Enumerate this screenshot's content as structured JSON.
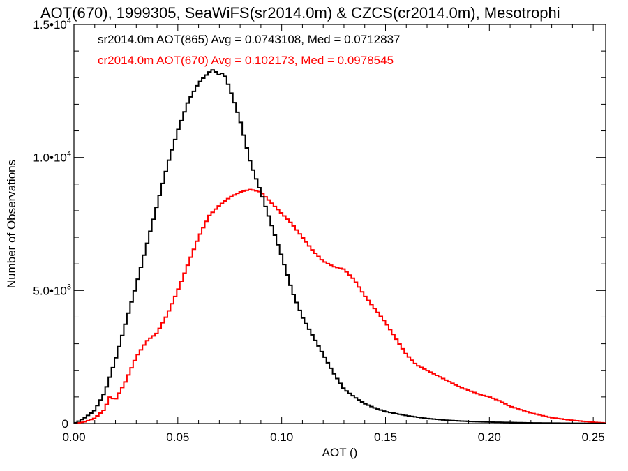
{
  "chart_data": {
    "type": "line",
    "title": "AOT(670), 1999305, SeaWiFS(sr2014.0m) & CZCS(cr2014.0m), Mesotrophi",
    "xlabel": "AOT ()",
    "ylabel": "Number of Observations",
    "xlim": [
      0.0,
      0.256
    ],
    "ylim": [
      0,
      15000
    ],
    "x_ticks": [
      {
        "value": 0.0,
        "label": "0.00"
      },
      {
        "value": 0.05,
        "label": "0.05"
      },
      {
        "value": 0.1,
        "label": "0.10"
      },
      {
        "value": 0.15,
        "label": "0.15"
      },
      {
        "value": 0.2,
        "label": "0.20"
      },
      {
        "value": 0.25,
        "label": "0.25"
      }
    ],
    "y_ticks": [
      {
        "value": 0,
        "mantissa": "0",
        "exponent": ""
      },
      {
        "value": 5000,
        "mantissa": "5.0•10",
        "exponent": "3"
      },
      {
        "value": 10000,
        "mantissa": "1.0•10",
        "exponent": "4"
      },
      {
        "value": 15000,
        "mantissa": "1.5•10",
        "exponent": "4"
      }
    ],
    "grid": false,
    "legend_position": "top-left",
    "series": [
      {
        "name": "sr2014.0m AOT(865) Avg = 0.0743108, Med = 0.0712837",
        "color": "#000000",
        "x": [
          0.0,
          0.005,
          0.01,
          0.015,
          0.02,
          0.025,
          0.03,
          0.035,
          0.04,
          0.045,
          0.05,
          0.055,
          0.06,
          0.065,
          0.067,
          0.07,
          0.072,
          0.075,
          0.08,
          0.085,
          0.09,
          0.095,
          0.1,
          0.105,
          0.11,
          0.115,
          0.12,
          0.125,
          0.13,
          0.135,
          0.14,
          0.145,
          0.15,
          0.16,
          0.17,
          0.18,
          0.19,
          0.2,
          0.22,
          0.24,
          0.256
        ],
        "values": [
          0,
          200,
          500,
          1200,
          2400,
          3800,
          5200,
          6700,
          8200,
          9700,
          11000,
          12100,
          12800,
          13200,
          13300,
          13100,
          13200,
          12600,
          11400,
          9800,
          8700,
          7500,
          6300,
          5000,
          4000,
          3300,
          2600,
          1900,
          1300,
          1000,
          750,
          580,
          450,
          300,
          190,
          120,
          80,
          55,
          25,
          10,
          5
        ]
      },
      {
        "name": "cr2014.0m AOT(670) Avg = 0.102173, Med = 0.0978545",
        "color": "#ff0000",
        "x": [
          0.0,
          0.005,
          0.01,
          0.015,
          0.017,
          0.02,
          0.025,
          0.03,
          0.035,
          0.04,
          0.045,
          0.05,
          0.055,
          0.06,
          0.065,
          0.07,
          0.075,
          0.08,
          0.085,
          0.09,
          0.095,
          0.1,
          0.105,
          0.11,
          0.115,
          0.12,
          0.125,
          0.13,
          0.135,
          0.14,
          0.145,
          0.15,
          0.155,
          0.16,
          0.165,
          0.17,
          0.175,
          0.18,
          0.185,
          0.19,
          0.195,
          0.2,
          0.205,
          0.21,
          0.22,
          0.23,
          0.24,
          0.25,
          0.256
        ],
        "values": [
          0,
          60,
          200,
          550,
          1000,
          900,
          1600,
          2500,
          3100,
          3400,
          4100,
          5000,
          6000,
          7000,
          7800,
          8200,
          8500,
          8700,
          8800,
          8700,
          8300,
          7900,
          7500,
          7000,
          6500,
          6100,
          5900,
          5800,
          5400,
          4800,
          4300,
          3800,
          3200,
          2600,
          2200,
          2000,
          1800,
          1600,
          1400,
          1250,
          1100,
          1000,
          850,
          650,
          400,
          220,
          120,
          50,
          20
        ]
      }
    ]
  }
}
